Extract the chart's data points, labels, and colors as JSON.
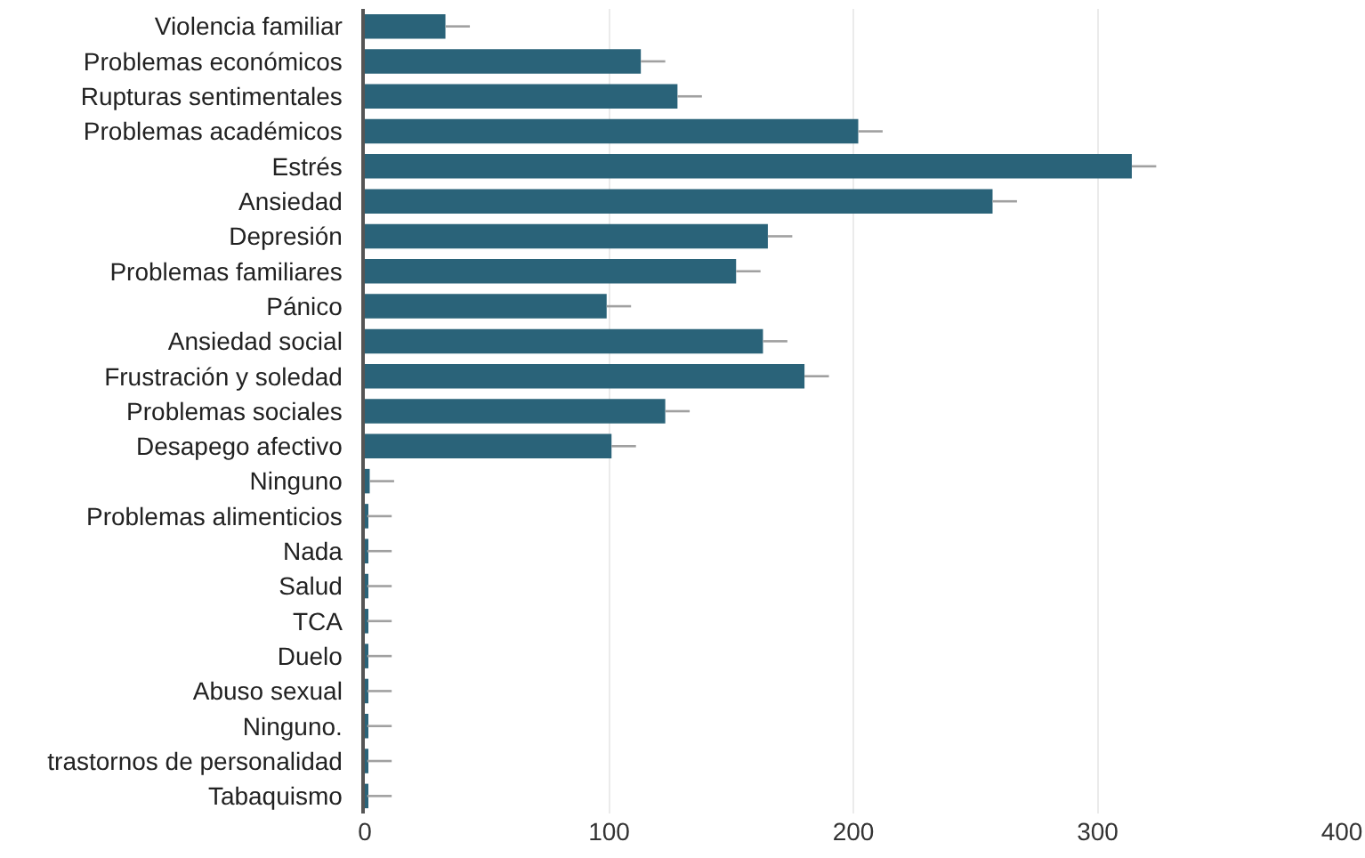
{
  "chart_data": {
    "type": "bar",
    "orientation": "horizontal",
    "categories": [
      "Violencia familiar",
      "Problemas económicos",
      "Rupturas sentimentales",
      "Problemas académicos",
      "Estrés",
      "Ansiedad",
      "Depresión",
      "Problemas familiares",
      "Pánico",
      "Ansiedad social",
      "Frustración y soledad",
      "Problemas sociales",
      "Desapego afectivo",
      "Ninguno",
      "Problemas alimenticios",
      "Nada",
      "Salud",
      "TCA",
      "Duelo",
      "Abuso sexual",
      "Ninguno.",
      "trastornos de personalidad",
      "Tabaquismo"
    ],
    "values": [
      33,
      113,
      128,
      202,
      314,
      257,
      165,
      152,
      99,
      163,
      180,
      123,
      101,
      2,
      1,
      1,
      1,
      1,
      1,
      1,
      1,
      1,
      1
    ],
    "errors": [
      [
        33,
        43
      ],
      [
        113,
        123
      ],
      [
        128,
        138
      ],
      [
        202,
        212
      ],
      [
        314,
        324
      ],
      [
        257,
        267
      ],
      [
        165,
        175
      ],
      [
        152,
        162
      ],
      [
        99,
        109
      ],
      [
        163,
        173
      ],
      [
        180,
        190
      ],
      [
        123,
        133
      ],
      [
        101,
        111
      ],
      [
        2,
        12
      ],
      [
        1,
        11
      ],
      [
        1,
        11
      ],
      [
        1,
        11
      ],
      [
        1,
        11
      ],
      [
        1,
        11
      ],
      [
        1,
        11
      ],
      [
        1,
        11
      ],
      [
        1,
        11
      ],
      [
        1,
        11
      ]
    ],
    "color": "#2a6379",
    "xlim": [
      0,
      400
    ],
    "xticks": [
      0,
      100,
      200,
      300,
      400
    ],
    "grid": "x"
  }
}
